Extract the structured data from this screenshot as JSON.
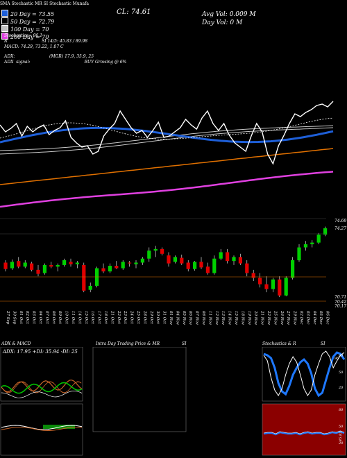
{
  "header": {
    "mini_top": "SMA Stochastic MR SI Stochastic Munafa",
    "legend": [
      {
        "label": "20  Day = 73.55",
        "color": "#1e5fd8"
      },
      {
        "label": "50  Day = 72.79",
        "color": "#000000"
      },
      {
        "label": "100  Day = 70",
        "color": "#c0c0c0"
      },
      {
        "label": "200  Day = 70",
        "color": "#e040e0"
      }
    ],
    "close": "CL: 74.61",
    "avg_vol": "Avg Vol: 0.009  M",
    "day_vol": "Day Vol: 0   M",
    "stoch_line": "Stochastics= 96.1",
    "si_line": "R                          SI 14/5: 45.83 / 89.98",
    "macd_line": "MACD: 74.29, 73.22, 1.07  C",
    "adx_line": "ADX:                          (MGR) 17.9, 35.9, 25",
    "adx_signal": "ADX  signal:                                         BUY Growing @ 6%"
  },
  "price_labels": [
    "74.69",
    "74.27",
    "70.71",
    "70.42",
    "70.17"
  ],
  "dates": [
    "27 Sep",
    "30 Sep",
    "01 Oct",
    "02 Oct",
    "03 Oct",
    "04 Oct",
    "07 Oct",
    "08 Oct",
    "09 Oct",
    "10 Oct",
    "11 Oct",
    "14 Oct",
    "15 Oct",
    "16 Oct",
    "17 Oct",
    "18 Oct",
    "21 Oct",
    "22 Oct",
    "23 Oct",
    "24 Oct",
    "25 Oct",
    "28 Oct",
    "29 Oct",
    "30 Oct",
    "31 Oct",
    "01 Nov",
    "04 Nov",
    "05 Nov",
    "06 Nov",
    "07 Nov",
    "08 Nov",
    "11 Nov",
    "12 Nov",
    "13 Nov",
    "14 Nov",
    "15 Nov",
    "18 Nov",
    "19 Nov",
    "20 Nov",
    "21 Nov",
    "22 Nov",
    "25 Nov",
    "26 Nov",
    "27 Nov",
    "29 Nov",
    "02 Dec",
    "03 Dec",
    "04 Dec",
    "05 Dec",
    "06 Dec"
  ],
  "panels": {
    "adx_title": "ADX  & MACD",
    "adx_stats": "ADX: 17.95  +DI: 35.94  -DI: 25",
    "intra_title": "Intra  Day Trading Price  & MR",
    "intra_si": "SI",
    "stoch_title": "Stochastics & R",
    "stoch_si": "SI",
    "stoch_ticks": [
      "80",
      "50",
      "20"
    ],
    "si_ticks": [
      "80",
      "50",
      "20"
    ],
    "stoch_value": "96",
    "si_value": "45.83"
  },
  "colors": {
    "up": "#00d000",
    "down": "#e00000",
    "sma20": "#1e5fd8",
    "sma100": "#c8c8c8",
    "sma200": "#e040e0",
    "orange": "#e07000",
    "si_bg": "#8b0000"
  },
  "chart_data": {
    "type": "candlestick",
    "x": [
      "27 Sep",
      "30 Sep",
      "01 Oct",
      "02 Oct",
      "03 Oct",
      "04 Oct",
      "07 Oct",
      "08 Oct",
      "09 Oct",
      "10 Oct",
      "11 Oct",
      "14 Oct",
      "15 Oct",
      "16 Oct",
      "17 Oct",
      "18 Oct",
      "21 Oct",
      "22 Oct",
      "23 Oct",
      "24 Oct",
      "25 Oct",
      "28 Oct",
      "29 Oct",
      "30 Oct",
      "31 Oct",
      "01 Nov",
      "04 Nov",
      "05 Nov",
      "06 Nov",
      "07 Nov",
      "08 Nov",
      "11 Nov",
      "12 Nov",
      "13 Nov",
      "14 Nov",
      "15 Nov",
      "18 Nov",
      "19 Nov",
      "20 Nov",
      "21 Nov",
      "22 Nov",
      "25 Nov",
      "26 Nov",
      "27 Nov",
      "29 Nov",
      "02 Dec",
      "03 Dec",
      "04 Dec",
      "05 Dec",
      "06 Dec"
    ],
    "ylim": [
      70.0,
      75.2
    ],
    "candles": [
      {
        "o": 72.45,
        "h": 72.6,
        "l": 71.9,
        "c": 72.05
      },
      {
        "o": 72.1,
        "h": 72.65,
        "l": 72.0,
        "c": 72.5
      },
      {
        "o": 72.55,
        "h": 72.8,
        "l": 72.1,
        "c": 72.2
      },
      {
        "o": 72.2,
        "h": 72.6,
        "l": 72.1,
        "c": 72.45
      },
      {
        "o": 72.4,
        "h": 72.5,
        "l": 71.9,
        "c": 72.0
      },
      {
        "o": 72.0,
        "h": 72.3,
        "l": 71.6,
        "c": 71.75
      },
      {
        "o": 71.8,
        "h": 72.4,
        "l": 71.7,
        "c": 72.3
      },
      {
        "o": 72.3,
        "h": 72.5,
        "l": 72.1,
        "c": 72.2
      },
      {
        "o": 72.2,
        "h": 72.4,
        "l": 71.9,
        "c": 72.3
      },
      {
        "o": 72.3,
        "h": 72.7,
        "l": 72.2,
        "c": 72.6
      },
      {
        "o": 72.5,
        "h": 72.7,
        "l": 72.2,
        "c": 72.35
      },
      {
        "o": 72.35,
        "h": 72.55,
        "l": 72.1,
        "c": 72.45
      },
      {
        "o": 72.3,
        "h": 72.45,
        "l": 70.6,
        "c": 70.7
      },
      {
        "o": 70.75,
        "h": 71.2,
        "l": 70.6,
        "c": 71.0
      },
      {
        "o": 71.0,
        "h": 72.2,
        "l": 70.9,
        "c": 72.1
      },
      {
        "o": 72.1,
        "h": 72.4,
        "l": 71.8,
        "c": 71.9
      },
      {
        "o": 71.9,
        "h": 72.4,
        "l": 71.8,
        "c": 72.25
      },
      {
        "o": 72.25,
        "h": 72.55,
        "l": 72.05,
        "c": 72.1
      },
      {
        "o": 72.1,
        "h": 72.6,
        "l": 72.0,
        "c": 72.5
      },
      {
        "o": 72.45,
        "h": 72.55,
        "l": 72.2,
        "c": 72.4
      },
      {
        "o": 72.35,
        "h": 72.6,
        "l": 72.1,
        "c": 72.45
      },
      {
        "o": 72.45,
        "h": 72.8,
        "l": 72.3,
        "c": 72.7
      },
      {
        "o": 72.7,
        "h": 73.4,
        "l": 72.5,
        "c": 73.2
      },
      {
        "o": 73.2,
        "h": 73.5,
        "l": 72.8,
        "c": 73.3
      },
      {
        "o": 73.3,
        "h": 73.4,
        "l": 72.9,
        "c": 73.0
      },
      {
        "o": 72.9,
        "h": 73.1,
        "l": 72.2,
        "c": 72.4
      },
      {
        "o": 72.5,
        "h": 72.9,
        "l": 72.4,
        "c": 72.8
      },
      {
        "o": 72.75,
        "h": 72.95,
        "l": 72.3,
        "c": 72.4
      },
      {
        "o": 72.45,
        "h": 72.6,
        "l": 71.9,
        "c": 72.05
      },
      {
        "o": 72.05,
        "h": 72.55,
        "l": 71.95,
        "c": 72.5
      },
      {
        "o": 72.5,
        "h": 72.8,
        "l": 72.05,
        "c": 72.15
      },
      {
        "o": 72.2,
        "h": 72.45,
        "l": 71.7,
        "c": 71.8
      },
      {
        "o": 71.8,
        "h": 72.9,
        "l": 71.7,
        "c": 72.7
      },
      {
        "o": 72.7,
        "h": 73.3,
        "l": 72.6,
        "c": 73.1
      },
      {
        "o": 73.1,
        "h": 73.3,
        "l": 72.4,
        "c": 72.55
      },
      {
        "o": 72.55,
        "h": 72.9,
        "l": 72.3,
        "c": 72.8
      },
      {
        "o": 72.8,
        "h": 73.0,
        "l": 72.3,
        "c": 72.4
      },
      {
        "o": 72.4,
        "h": 72.6,
        "l": 71.6,
        "c": 71.8
      },
      {
        "o": 71.8,
        "h": 72.0,
        "l": 71.3,
        "c": 71.5
      },
      {
        "o": 71.5,
        "h": 71.8,
        "l": 70.9,
        "c": 71.1
      },
      {
        "o": 71.1,
        "h": 71.6,
        "l": 70.6,
        "c": 70.8
      },
      {
        "o": 70.8,
        "h": 71.5,
        "l": 70.6,
        "c": 71.4
      },
      {
        "o": 71.4,
        "h": 71.6,
        "l": 70.3,
        "c": 70.4
      },
      {
        "o": 70.4,
        "h": 71.6,
        "l": 70.35,
        "c": 71.5
      },
      {
        "o": 71.5,
        "h": 72.8,
        "l": 71.4,
        "c": 72.6
      },
      {
        "o": 72.6,
        "h": 73.6,
        "l": 72.5,
        "c": 73.4
      },
      {
        "o": 73.4,
        "h": 73.8,
        "l": 73.2,
        "c": 73.6
      },
      {
        "o": 73.6,
        "h": 73.85,
        "l": 73.4,
        "c": 73.7
      },
      {
        "o": 73.7,
        "h": 74.3,
        "l": 73.6,
        "c": 74.2
      },
      {
        "o": 74.2,
        "h": 74.7,
        "l": 74.1,
        "c": 74.6
      }
    ]
  }
}
